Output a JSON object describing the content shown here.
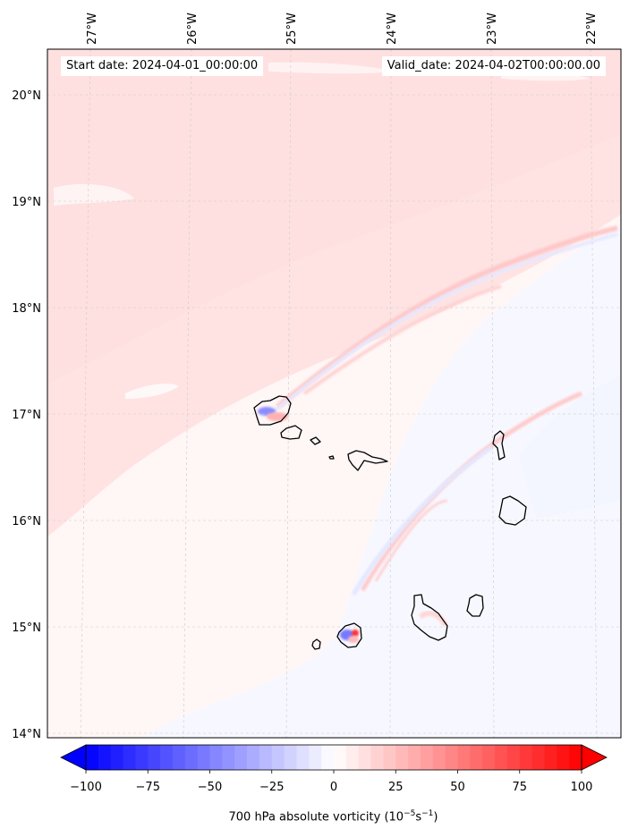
{
  "map": {
    "start_date": "Start date: 2024-04-01_00:00:00",
    "valid_date": "Valid_date: 2024-04-02T00:00:00.00",
    "lon_ticks": [
      "27°W",
      "26°W",
      "25°W",
      "24°W",
      "23°W",
      "22°W"
    ],
    "lat_ticks": [
      "20°N",
      "19°N",
      "18°N",
      "17°N",
      "16°N",
      "15°N",
      "14°N"
    ],
    "islands": [
      "Santo Antão",
      "São Vicente",
      "Santa Luzia",
      "Raso",
      "São Nicolau",
      "Sal",
      "Boa Vista",
      "Maio",
      "Santiago",
      "Fogo",
      "Brava"
    ]
  },
  "colorbar": {
    "label_prefix": "700 hPa absolute vorticity (10",
    "label_exp1": "−5",
    "label_mid": "s",
    "label_exp2": "−1",
    "label_suffix": ")",
    "ticks": [
      "−100",
      "−75",
      "−50",
      "−25",
      "0",
      "25",
      "50",
      "75",
      "100"
    ],
    "min": -100,
    "max": 100,
    "colors": {
      "neg": "#0000ff",
      "zero": "#ffffff",
      "pos": "#ff0000"
    }
  }
}
